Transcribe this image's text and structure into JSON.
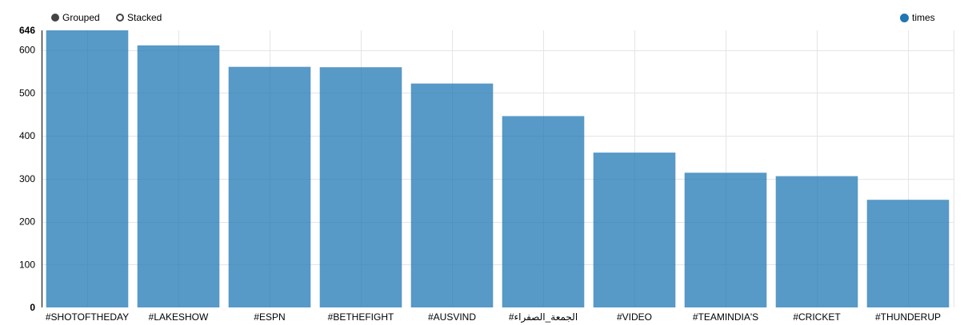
{
  "controls": {
    "grouped_label": "Grouped",
    "stacked_label": "Stacked",
    "selected": "Grouped"
  },
  "legend": {
    "label": "times",
    "color": "#1f77b4"
  },
  "colors": {
    "bar": "#1f77b4",
    "grid": "#e5e5e5"
  },
  "chart_data": {
    "type": "bar",
    "categories": [
      "#SHOTOFTHEDAY",
      "#LAKESHOW",
      "#ESPN",
      "#BETHEFIGHT",
      "#AUSVIND",
      "#الجمعة_الصفراء",
      "#VIDEO",
      "#TEAMINDIA'S",
      "#CRICKET",
      "#THUNDERUP"
    ],
    "series": [
      {
        "name": "times",
        "values": [
          646,
          611,
          561,
          560,
          522,
          446,
          361,
          314,
          306,
          251
        ]
      }
    ],
    "ylim": [
      0,
      646
    ],
    "yticks": [
      0,
      100,
      200,
      300,
      400,
      500,
      600,
      646
    ],
    "grid": true,
    "legend_position": "top-right"
  }
}
